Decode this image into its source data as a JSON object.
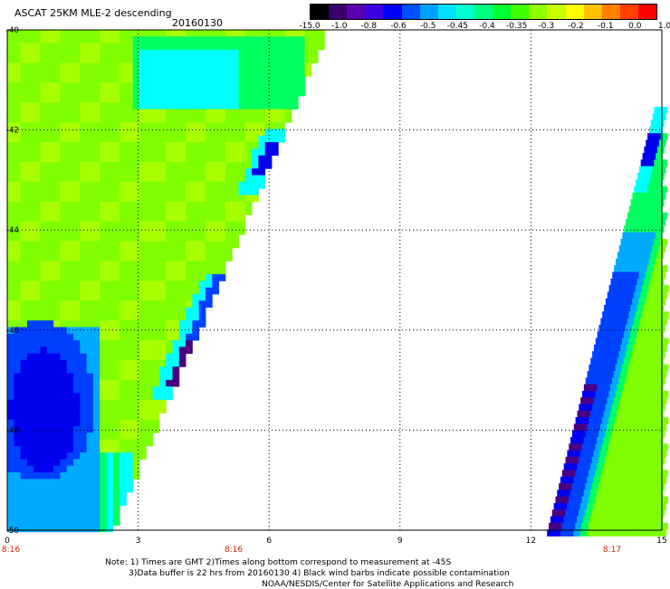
{
  "header": {
    "title": "ASCAT 25KM MLE-2 descending",
    "date": "20160130"
  },
  "colorbar": {
    "labels": [
      "-15.0",
      "-1.0",
      "-0.8",
      "-0.6",
      "-0.5",
      "-0.45",
      "-0.4",
      "-0.35",
      "-0.3",
      "-0.2",
      "-0.1",
      "0.0",
      "1.0"
    ],
    "colors": [
      "#000000",
      "#3a006a",
      "#5a00b0",
      "#3b00e0",
      "#0000ff",
      "#0050ff",
      "#00a0ff",
      "#00e0ff",
      "#00ffd0",
      "#00ff80",
      "#00ff30",
      "#40ff00",
      "#90ff00",
      "#c8ff00",
      "#ffff00",
      "#ffc000",
      "#ff8000",
      "#ff4000",
      "#ff0000"
    ]
  },
  "axes": {
    "y_labels": [
      "-40",
      "-42",
      "-44",
      "-46",
      "-48",
      "-50"
    ],
    "x_labels": [
      "0",
      "3",
      "6",
      "9",
      "12",
      "15"
    ],
    "time_labels": [
      "8:16",
      "8:16",
      "8:17"
    ],
    "time_color": "#cc2200"
  },
  "notes": {
    "line1": "Note: 1) Times are GMT 2)Times along bottom correspond to measurement at -45S",
    "line2": "3)Data buffer is 22 hrs from 20160130 4) Black wind barbs indicate possible contamination",
    "line3": "NOAA/NESDIS/Center for Satellite Applications and Research"
  },
  "palette": {
    "green": "#7fff00",
    "lime": "#a8ff00",
    "spring": "#00ff60",
    "cyan": "#00ffff",
    "sky": "#00aaff",
    "blue": "#0040ff",
    "deep": "#0000ee",
    "purple": "#4b0082"
  }
}
